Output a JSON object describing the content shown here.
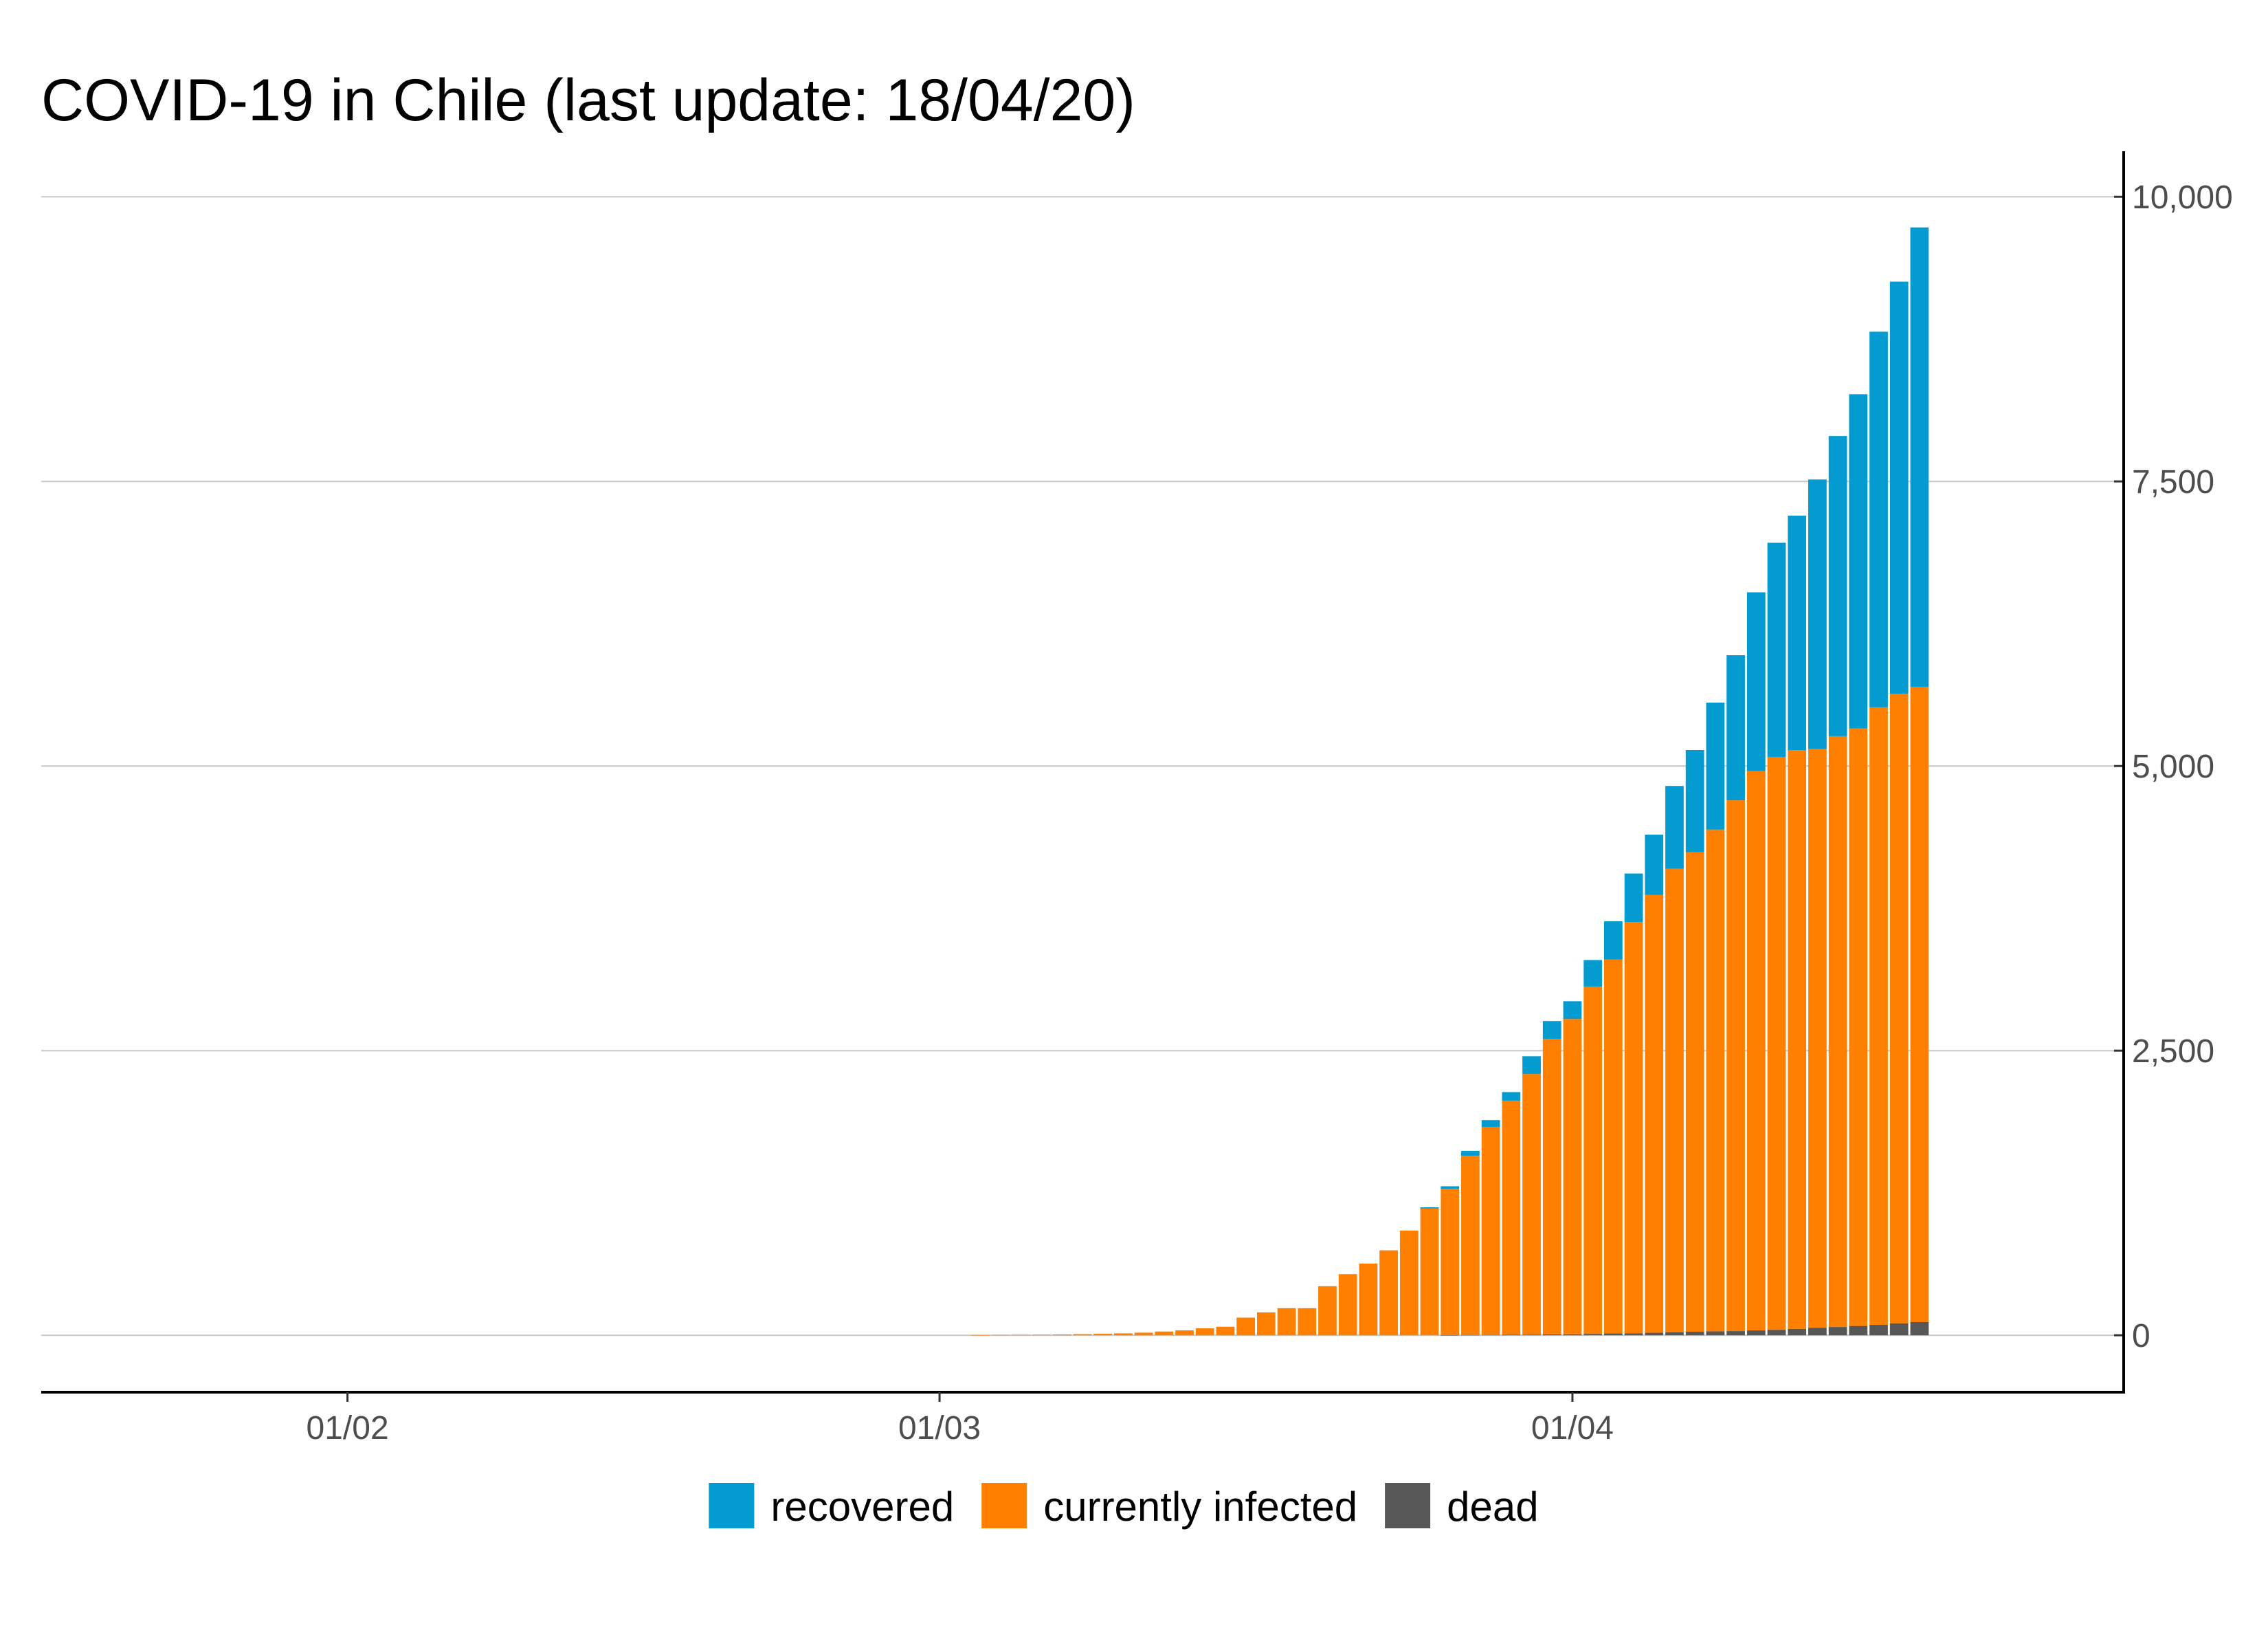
{
  "chart_data": {
    "type": "bar",
    "stacked": true,
    "title": "COVID-19 in Chile (last update: 18/04/20)",
    "xlabel": "",
    "ylabel": "",
    "x_domain": [
      "2020-01-17",
      "2020-04-28"
    ],
    "ylim": [
      -500,
      10400
    ],
    "y_ticks": [
      0,
      2500,
      5000,
      7500,
      10000
    ],
    "y_tick_labels": [
      "0",
      "2,500",
      "5,000",
      "7,500",
      "10,000"
    ],
    "y_axis_position": "right",
    "x_ticks": [
      "2020-02-01",
      "2020-03-01",
      "2020-04-01"
    ],
    "x_tick_labels": [
      "01/02",
      "01/03",
      "01/04"
    ],
    "grid": "horizontal",
    "legend_position": "bottom",
    "colors": {
      "recovered": "#039BD0",
      "currently infected": "#FF8000",
      "dead": "#575757"
    },
    "dates": [
      "2020-03-03",
      "2020-03-04",
      "2020-03-05",
      "2020-03-06",
      "2020-03-07",
      "2020-03-08",
      "2020-03-09",
      "2020-03-10",
      "2020-03-11",
      "2020-03-12",
      "2020-03-13",
      "2020-03-14",
      "2020-03-15",
      "2020-03-16",
      "2020-03-17",
      "2020-03-18",
      "2020-03-19",
      "2020-03-20",
      "2020-03-21",
      "2020-03-22",
      "2020-03-23",
      "2020-03-24",
      "2020-03-25",
      "2020-03-26",
      "2020-03-27",
      "2020-03-28",
      "2020-03-29",
      "2020-03-30",
      "2020-03-31",
      "2020-04-01",
      "2020-04-02",
      "2020-04-03",
      "2020-04-04",
      "2020-04-05",
      "2020-04-06",
      "2020-04-07",
      "2020-04-08",
      "2020-04-09",
      "2020-04-10",
      "2020-04-11",
      "2020-04-12",
      "2020-04-13",
      "2020-04-14",
      "2020-04-15",
      "2020-04-16",
      "2020-04-17",
      "2020-04-18"
    ],
    "series": [
      {
        "name": "dead",
        "values": [
          0,
          0,
          0,
          0,
          0,
          0,
          0,
          0,
          0,
          0,
          0,
          0,
          0,
          0,
          0,
          0,
          0,
          0,
          0,
          0,
          0,
          0,
          0,
          1,
          2,
          3,
          4,
          5,
          7,
          9,
          12,
          16,
          18,
          22,
          27,
          31,
          35,
          37,
          43,
          48,
          57,
          65,
          73,
          82,
          92,
          105,
          116
        ]
      },
      {
        "name": "currently infected",
        "values": [
          1,
          3,
          4,
          5,
          7,
          10,
          13,
          17,
          23,
          33,
          43,
          61,
          75,
          155,
          201,
          238,
          238,
          431,
          537,
          630,
          746,
          920,
          1113,
          1286,
          1575,
          1826,
          2057,
          2290,
          2597,
          2769,
          3050,
          3285,
          3611,
          3847,
          4070,
          4211,
          4407,
          4662,
          4912,
          5032,
          5083,
          5085,
          5189,
          5247,
          5424,
          5529,
          5580
        ]
      },
      {
        "name": "recovered",
        "values": [
          0,
          0,
          0,
          0,
          0,
          0,
          0,
          0,
          0,
          0,
          0,
          0,
          0,
          0,
          0,
          0,
          0,
          0,
          0,
          0,
          0,
          0,
          11,
          22,
          43,
          61,
          75,
          156,
          156,
          156,
          234,
          335,
          427,
          528,
          728,
          898,
          1115,
          1274,
          1571,
          1881,
          2059,
          2367,
          2637,
          2937,
          3299,
          3621,
          4035
        ]
      }
    ]
  }
}
